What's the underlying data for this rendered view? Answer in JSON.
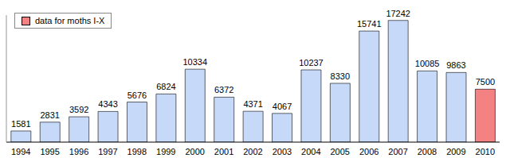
{
  "chart_data": {
    "type": "bar",
    "categories": [
      "1994",
      "1995",
      "1996",
      "1997",
      "1998",
      "1999",
      "2000",
      "2001",
      "2002",
      "2003",
      "2004",
      "2005",
      "2006",
      "2007",
      "2008",
      "2009",
      "2010"
    ],
    "series": [
      {
        "color": "#c6d9f8",
        "values": [
          1581,
          2831,
          3592,
          4343,
          5676,
          6824,
          10334,
          6372,
          4371,
          4067,
          10237,
          8330,
          15741,
          17242,
          10085,
          9863,
          null
        ]
      },
      {
        "name": "data for moths I-X",
        "color": "#f58282",
        "values": [
          null,
          null,
          null,
          null,
          null,
          null,
          null,
          null,
          null,
          null,
          null,
          null,
          null,
          null,
          null,
          null,
          7500
        ]
      }
    ],
    "stacked": true,
    "data_labels": true,
    "tick_labels": "x",
    "ylim": [
      0,
      18000
    ],
    "legend": "upper left"
  }
}
